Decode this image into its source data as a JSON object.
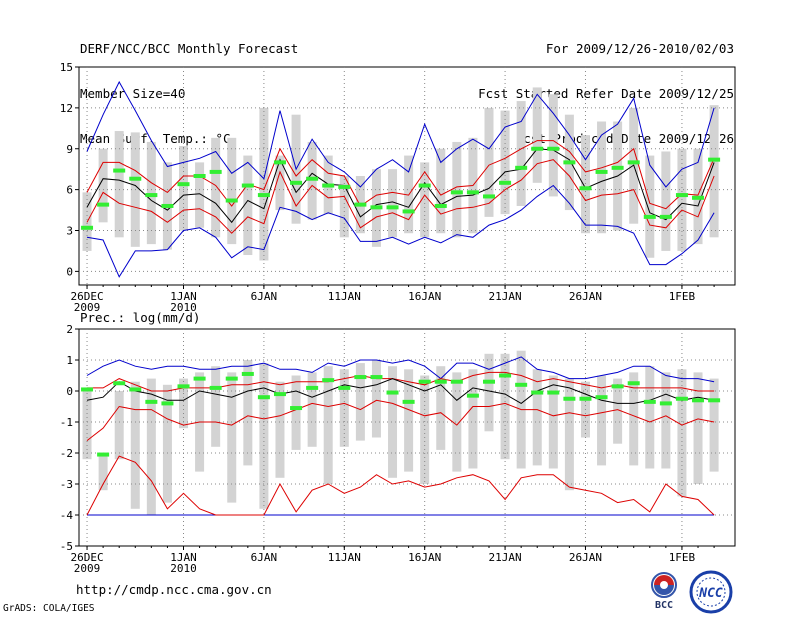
{
  "header": {
    "left": [
      "DERF/NCC/BCC Monthly Forecast",
      "Member Size=40",
      "Mean Surf. Temp.: °C"
    ],
    "right": [
      "For 2009/12/26-2010/02/03",
      "Fcst Started Refer Date 2009/12/25",
      "Fcst Produced Date 2009/12/26"
    ]
  },
  "footer": {
    "url": "http://cmdp.ncc.cma.gov.cn",
    "credit": "GrADS: COLA/IGES"
  },
  "logos": {
    "bcc_text": "BCC",
    "ncc_text": "NCC"
  },
  "colors": {
    "box": "#d3d3d3",
    "mean": "#000000",
    "inner_bound": "#dd0000",
    "outer_bound": "#0000cc",
    "obs": "#33ee33",
    "grid": "#888888"
  },
  "chart_data": [
    {
      "type": "box-ensemble",
      "title": "Mean Surf. Temp.: °C",
      "ylim": [
        -1,
        15
      ],
      "yticks": [
        0,
        3,
        6,
        9,
        12,
        15
      ],
      "xticks": [
        {
          "day": 0,
          "label": "26DEC",
          "sub": "2009"
        },
        {
          "day": 6,
          "label": "1JAN",
          "sub": "2010"
        },
        {
          "day": 11,
          "label": "6JAN",
          "sub": ""
        },
        {
          "day": 16,
          "label": "11JAN",
          "sub": ""
        },
        {
          "day": 21,
          "label": "16JAN",
          "sub": ""
        },
        {
          "day": 26,
          "label": "21JAN",
          "sub": ""
        },
        {
          "day": 31,
          "label": "26JAN",
          "sub": ""
        },
        {
          "day": 37,
          "label": "1FEB",
          "sub": ""
        }
      ],
      "box_low": [
        1.5,
        3.6,
        2.5,
        1.8,
        2.0,
        1.6,
        3.0,
        3.2,
        2.5,
        2.0,
        1.2,
        0.8,
        4.5,
        3.5,
        3.8,
        4.2,
        2.5,
        2.8,
        1.8,
        2.5,
        2.8,
        2.5,
        2.8,
        2.5,
        2.8,
        4.0,
        4.2,
        4.8,
        6.5,
        5.5,
        4.5,
        2.8,
        2.8,
        3.0,
        3.5,
        1.0,
        1.5,
        1.5,
        2.0,
        2.5
      ],
      "box_high": [
        5.8,
        9.0,
        10.3,
        10.2,
        9.5,
        8.0,
        9.2,
        8.0,
        9.8,
        9.8,
        8.5,
        12.0,
        8.5,
        11.5,
        9.5,
        8.5,
        7.0,
        7.0,
        7.5,
        7.5,
        8.5,
        8.0,
        9.0,
        9.5,
        9.8,
        12.0,
        11.8,
        12.5,
        13.5,
        13.0,
        11.5,
        10.0,
        11.0,
        11.0,
        12.0,
        8.5,
        8.8,
        9.0,
        9.0,
        12.2
      ],
      "mean": [
        4.7,
        6.8,
        6.7,
        6.3,
        5.2,
        4.5,
        5.6,
        5.7,
        5.0,
        3.6,
        5.2,
        4.6,
        8.2,
        5.8,
        7.2,
        6.4,
        6.3,
        4.0,
        4.9,
        5.1,
        4.7,
        6.5,
        4.9,
        5.5,
        5.6,
        6.1,
        7.3,
        7.5,
        9.0,
        8.9,
        8.2,
        6.1,
        6.6,
        7.0,
        7.8,
        4.3,
        3.8,
        5.0,
        4.8,
        8.0
      ],
      "inner_high": [
        5.8,
        8.0,
        8.0,
        7.4,
        6.5,
        5.8,
        7.0,
        7.0,
        6.3,
        4.8,
        6.4,
        6.0,
        9.0,
        7.0,
        8.2,
        7.2,
        7.0,
        4.8,
        5.6,
        5.8,
        5.6,
        7.3,
        5.6,
        6.2,
        6.3,
        7.8,
        8.3,
        9.0,
        9.6,
        9.6,
        8.8,
        7.3,
        7.6,
        8.0,
        9.0,
        5.0,
        4.6,
        5.7,
        5.6,
        8.3
      ],
      "inner_low": [
        3.6,
        5.8,
        5.0,
        4.7,
        4.4,
        3.6,
        4.5,
        4.6,
        4.0,
        2.8,
        4.0,
        3.5,
        7.3,
        4.8,
        6.3,
        5.4,
        5.5,
        3.2,
        4.0,
        4.3,
        3.8,
        5.6,
        4.2,
        4.6,
        4.7,
        5.0,
        6.0,
        6.7,
        7.9,
        8.2,
        7.0,
        5.2,
        5.6,
        5.7,
        6.0,
        3.4,
        3.2,
        4.5,
        4.0,
        7.0
      ],
      "outer_high": [
        8.8,
        11.5,
        13.9,
        11.8,
        9.6,
        7.7,
        8.0,
        8.3,
        8.8,
        7.2,
        8.0,
        6.8,
        11.8,
        7.5,
        9.7,
        8.0,
        7.3,
        6.2,
        7.5,
        8.2,
        7.3,
        10.8,
        8.0,
        9.0,
        9.7,
        9.0,
        10.6,
        11.0,
        13.0,
        11.6,
        10.0,
        8.2,
        10.0,
        10.8,
        12.7,
        7.8,
        6.2,
        7.5,
        8.0,
        12.0
      ],
      "outer_low": [
        2.5,
        2.3,
        -0.4,
        1.5,
        1.5,
        1.6,
        3.0,
        3.2,
        2.5,
        1.0,
        1.8,
        1.6,
        4.7,
        4.4,
        3.8,
        4.3,
        3.9,
        2.2,
        2.2,
        2.5,
        2.0,
        2.5,
        2.1,
        2.7,
        2.5,
        3.4,
        3.8,
        4.5,
        5.5,
        6.3,
        5.0,
        3.4,
        3.4,
        3.3,
        2.8,
        0.5,
        0.5,
        1.3,
        2.3,
        4.3
      ],
      "obs": [
        3.2,
        4.9,
        7.4,
        6.8,
        5.6,
        4.8,
        6.4,
        7.0,
        7.3,
        5.2,
        6.3,
        5.6,
        8.0,
        6.5,
        6.8,
        6.3,
        6.2,
        4.9,
        4.7,
        4.7,
        4.4,
        6.3,
        4.8,
        5.8,
        5.8,
        5.5,
        6.5,
        7.6,
        9.0,
        9.0,
        8.0,
        6.1,
        7.3,
        7.6,
        8.0,
        4.0,
        4.0,
        5.6,
        5.4,
        8.2
      ]
    },
    {
      "type": "box-ensemble",
      "title": "Prec.: log(mm/d)",
      "ylim": [
        -5,
        2
      ],
      "yticks": [
        -5,
        -4,
        -3,
        -2,
        -1,
        0,
        1,
        2
      ],
      "xticks": [
        {
          "day": 0,
          "label": "26DEC",
          "sub": "2009"
        },
        {
          "day": 6,
          "label": "1JAN",
          "sub": "2010"
        },
        {
          "day": 11,
          "label": "6JAN",
          "sub": ""
        },
        {
          "day": 16,
          "label": "11JAN",
          "sub": ""
        },
        {
          "day": 21,
          "label": "16JAN",
          "sub": ""
        },
        {
          "day": 26,
          "label": "21JAN",
          "sub": ""
        },
        {
          "day": 31,
          "label": "26JAN",
          "sub": ""
        },
        {
          "day": 37,
          "label": "1FEB",
          "sub": ""
        }
      ],
      "box_low": [
        -2.2,
        -3.2,
        -2.2,
        -3.8,
        -4.0,
        -3.6,
        -1.2,
        -2.6,
        -1.8,
        -3.6,
        -2.4,
        -3.8,
        -2.8,
        -1.9,
        -1.8,
        -3.0,
        -1.8,
        -1.6,
        -1.5,
        -2.8,
        -2.6,
        -3.0,
        -1.9,
        -2.6,
        -2.5,
        -1.3,
        -2.2,
        -2.5,
        -2.4,
        -2.5,
        -3.2,
        -1.5,
        -2.4,
        -1.7,
        -2.4,
        -2.5,
        -2.5,
        -3.4,
        -3.0,
        -2.6
      ],
      "box_high": [
        0.0,
        -2.0,
        0.0,
        0.3,
        0.4,
        0.2,
        0.4,
        0.6,
        0.8,
        0.6,
        1.0,
        0.9,
        0.3,
        0.5,
        0.6,
        0.8,
        0.7,
        0.9,
        1.0,
        0.8,
        0.7,
        0.5,
        0.8,
        0.6,
        0.7,
        1.2,
        1.2,
        1.3,
        0.7,
        0.5,
        0.4,
        0.3,
        0.5,
        0.4,
        0.6,
        0.8,
        0.6,
        0.7,
        0.6,
        0.4
      ],
      "mean": [
        -0.3,
        -0.2,
        0.3,
        0.0,
        -0.1,
        -0.3,
        -0.3,
        0.0,
        -0.1,
        -0.2,
        0.0,
        0.1,
        -0.1,
        0.0,
        -0.2,
        0.0,
        0.2,
        0.1,
        0.2,
        0.4,
        0.2,
        0.0,
        0.2,
        -0.3,
        0.1,
        0.0,
        -0.1,
        -0.4,
        0.0,
        0.2,
        0.1,
        -0.1,
        -0.3,
        -0.4,
        -0.4,
        -0.3,
        -0.1,
        -0.3,
        -0.2,
        -0.3
      ],
      "inner_high": [
        0.1,
        0.1,
        0.4,
        0.2,
        0.0,
        0.0,
        0.1,
        0.1,
        0.1,
        0.2,
        0.2,
        0.3,
        0.2,
        0.3,
        0.3,
        0.3,
        0.4,
        0.5,
        0.4,
        0.4,
        0.3,
        0.2,
        0.4,
        0.3,
        0.5,
        0.6,
        0.6,
        0.5,
        0.3,
        0.4,
        0.3,
        0.2,
        0.1,
        0.2,
        0.1,
        0.1,
        0.1,
        0.1,
        0.0,
        0.0
      ],
      "inner_low": [
        -1.6,
        -1.2,
        -0.5,
        -0.6,
        -0.6,
        -0.9,
        -1.1,
        -1.0,
        -1.0,
        -1.1,
        -0.8,
        -0.9,
        -0.8,
        -0.6,
        -0.4,
        -0.5,
        -0.4,
        -0.6,
        -0.3,
        -0.4,
        -0.6,
        -0.8,
        -0.7,
        -1.1,
        -0.5,
        -0.5,
        -0.4,
        -0.6,
        -0.6,
        -0.8,
        -0.7,
        -0.8,
        -0.7,
        -0.6,
        -0.8,
        -1.0,
        -0.8,
        -1.1,
        -0.9,
        -1.0
      ],
      "outer_high": [
        0.5,
        0.8,
        1.0,
        0.8,
        0.7,
        0.8,
        0.8,
        0.7,
        0.7,
        0.8,
        0.8,
        0.9,
        0.7,
        0.7,
        0.6,
        0.9,
        0.8,
        1.0,
        1.0,
        0.9,
        1.0,
        0.8,
        0.4,
        0.9,
        0.9,
        0.7,
        0.9,
        1.1,
        0.7,
        0.6,
        0.4,
        0.4,
        0.5,
        0.6,
        0.8,
        0.8,
        0.5,
        0.4,
        0.4,
        0.3
      ],
      "outer_low": [
        -4.0,
        -4.0,
        -4.0,
        -4.0,
        -4.0,
        -4.0,
        -4.0,
        -4.0,
        -4.0,
        -4.0,
        -4.0,
        -4.0,
        -4.0,
        -4.0,
        -4.0,
        -4.0,
        -4.0,
        -4.0,
        -4.0,
        -4.0,
        -4.0,
        -4.0,
        -4.0,
        -4.0,
        -4.0,
        -4.0,
        -4.0,
        -4.0,
        -4.0,
        -4.0,
        -4.0,
        -4.0,
        -4.0,
        -4.0,
        -4.0,
        -4.0,
        -4.0,
        -4.0,
        -4.0,
        -4.0
      ],
      "lowest_red": [
        -4.0,
        -3.0,
        -2.1,
        -2.3,
        -2.9,
        -3.8,
        -3.3,
        -3.8,
        -4.0,
        -4.0,
        -4.0,
        -4.0,
        -3.0,
        -3.9,
        -3.2,
        -3.0,
        -3.3,
        -3.1,
        -2.7,
        -3.0,
        -2.9,
        -3.1,
        -3.0,
        -2.8,
        -2.7,
        -2.9,
        -3.5,
        -2.8,
        -2.7,
        -2.7,
        -3.1,
        -3.2,
        -3.3,
        -3.6,
        -3.5,
        -3.9,
        -3.0,
        -3.4,
        -3.5,
        -4.0
      ],
      "obs": [
        0.05,
        -2.05,
        0.25,
        0.05,
        -0.35,
        -0.4,
        0.15,
        0.4,
        0.1,
        0.4,
        0.55,
        -0.2,
        -0.1,
        -0.55,
        0.1,
        0.35,
        0.1,
        0.45,
        0.45,
        -0.05,
        -0.35,
        0.3,
        0.3,
        0.3,
        -0.15,
        0.3,
        0.5,
        0.2,
        -0.05,
        -0.05,
        -0.25,
        -0.25,
        -0.2,
        0.15,
        0.25,
        -0.35,
        -0.4,
        -0.25,
        -0.3,
        -0.3
      ]
    }
  ]
}
